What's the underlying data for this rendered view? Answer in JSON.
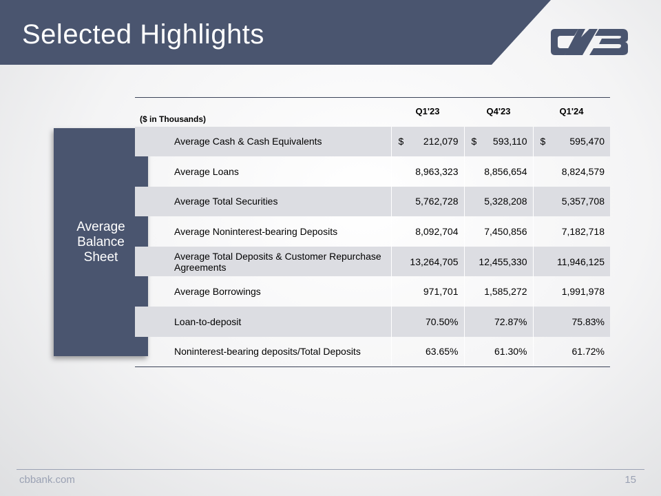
{
  "slide": {
    "title": "Selected Highlights",
    "accent_color": "#4a556f",
    "logo_text": "CVB"
  },
  "side_panel": {
    "label": "Average Balance Sheet"
  },
  "table": {
    "units_label": "($ in Thousands)",
    "columns": [
      "Q1'23",
      "Q4'23",
      "Q1'24"
    ],
    "rows": [
      {
        "label": "Average Cash & Cash Equivalents",
        "values": [
          "212,079",
          "593,110",
          "595,470"
        ],
        "currency": "$"
      },
      {
        "label": "Average Loans",
        "values": [
          "8,963,323",
          "8,856,654",
          "8,824,579"
        ]
      },
      {
        "label": "Average Total Securities",
        "values": [
          "5,762,728",
          "5,328,208",
          "5,357,708"
        ]
      },
      {
        "label": "Average Noninterest-bearing Deposits",
        "values": [
          "8,092,704",
          "7,450,856",
          "7,182,718"
        ]
      },
      {
        "label": "Average Total Deposits & Customer Repurchase Agreements",
        "values": [
          "13,264,705",
          "12,455,330",
          "11,946,125"
        ]
      },
      {
        "label": "Average Borrowings",
        "values": [
          "971,701",
          "1,585,272",
          "1,991,978"
        ]
      },
      {
        "label": "Loan-to-deposit",
        "values": [
          "70.50%",
          "72.87%",
          "75.83%"
        ]
      },
      {
        "label": "Noninterest-bearing deposits/Total Deposits",
        "values": [
          "63.65%",
          "61.30%",
          "61.72%"
        ]
      }
    ]
  },
  "footer": {
    "site": "cbbank.com",
    "page_number": "15"
  }
}
